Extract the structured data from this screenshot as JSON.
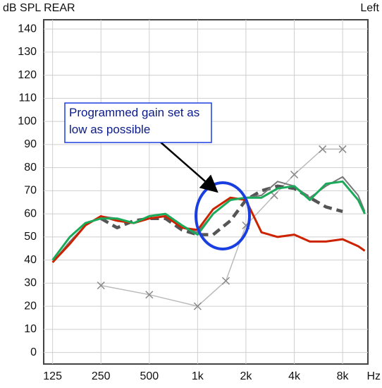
{
  "chart_data": {
    "type": "line",
    "y_label": "dB SPL REAR",
    "corner_label": "Left",
    "x_label": "Hz",
    "annotation": "Programmed gain set as low as possible",
    "xscale": "log",
    "grid": true,
    "xlim": [
      110,
      11500
    ],
    "ylim": [
      -5,
      144
    ],
    "xticks": [
      125,
      250,
      500,
      {
        "value": 1000,
        "label": "1k"
      },
      {
        "value": 2000,
        "label": "2k"
      },
      {
        "value": 4000,
        "label": "4k"
      },
      {
        "value": 8000,
        "label": "8k"
      }
    ],
    "yticks": [
      0,
      10,
      20,
      30,
      40,
      50,
      60,
      70,
      80,
      90,
      100,
      110,
      120,
      130,
      140
    ],
    "x": [
      125,
      160,
      200,
      250,
      315,
      400,
      500,
      630,
      800,
      1000,
      1250,
      1600,
      2000,
      2500,
      3150,
      4000,
      5000,
      6300,
      8000,
      10000,
      11000
    ],
    "series": [
      {
        "color": "#bbbbbb",
        "marker": "x",
        "x": [
          250,
          500,
          1000,
          1500,
          2000,
          3000,
          4000,
          6000,
          8000
        ],
        "values": [
          29,
          25,
          20,
          31,
          55,
          68,
          77,
          88,
          88
        ]
      },
      {
        "color": "#555555",
        "dashed": true,
        "values": [
          null,
          null,
          null,
          58,
          54,
          57,
          58,
          58,
          53,
          51,
          51,
          57,
          66,
          70,
          72,
          71,
          67,
          63,
          61,
          null,
          null
        ]
      },
      {
        "color": "#777777",
        "values": [
          39,
          48,
          55,
          59,
          58,
          56,
          58,
          59,
          54,
          52,
          60,
          66,
          67,
          68,
          74,
          72,
          67,
          72,
          76,
          68,
          61
        ]
      },
      {
        "color": "#cc2200",
        "values": [
          39,
          47,
          55,
          59,
          57,
          56,
          58,
          59,
          54,
          53,
          62,
          67,
          66,
          52,
          50,
          51,
          48,
          48,
          49,
          46,
          44
        ]
      },
      {
        "color": "#1aaa5a",
        "values": [
          40,
          50,
          56,
          58,
          58,
          56,
          59,
          60,
          55,
          51,
          60,
          66,
          67,
          67,
          71,
          72,
          66,
          73,
          74,
          66,
          60
        ]
      }
    ]
  }
}
